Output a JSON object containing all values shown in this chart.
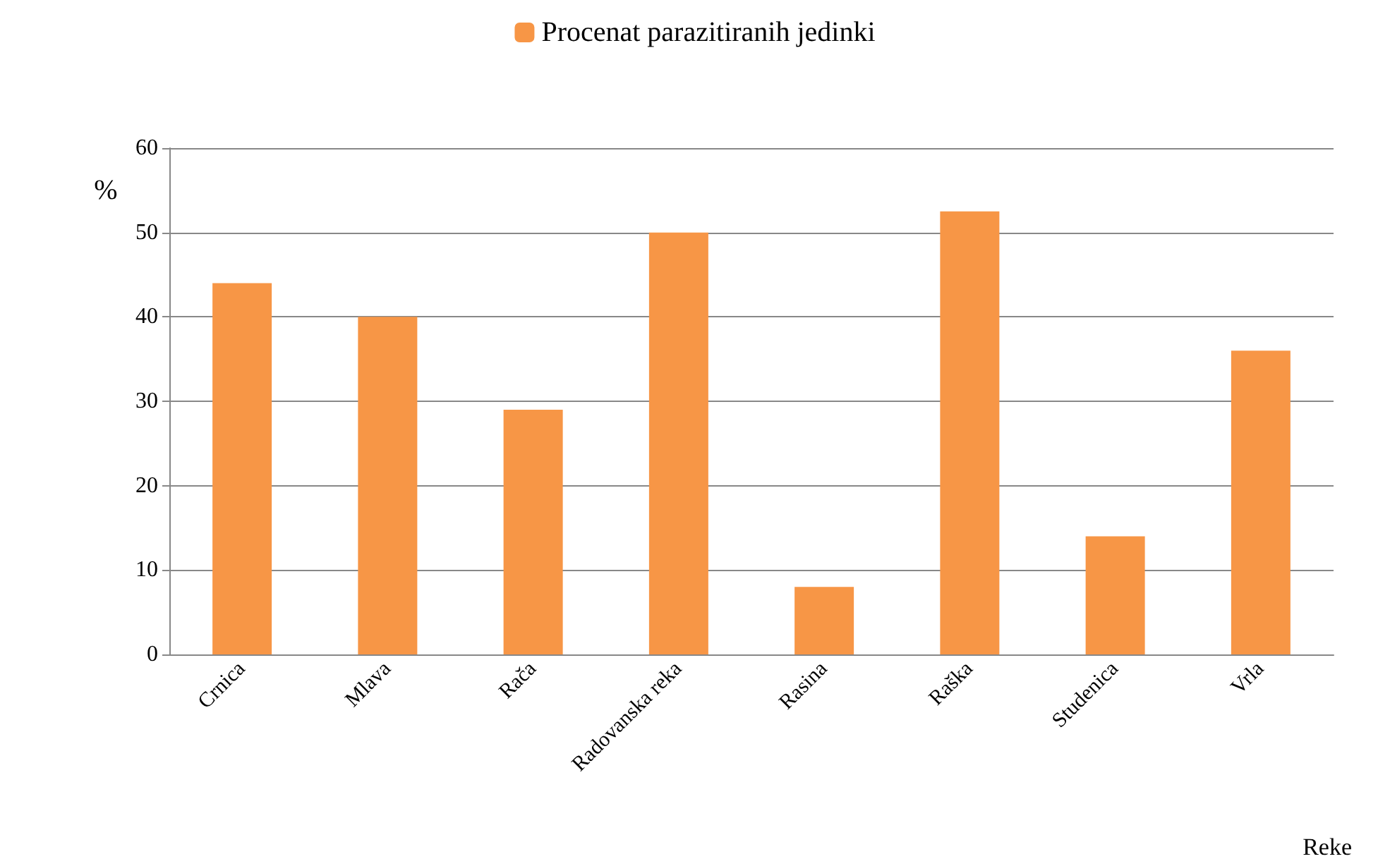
{
  "chart_data": {
    "type": "bar",
    "xlabel": "Reke",
    "ylabel": "%",
    "categories": [
      "Crnica",
      "Mlava",
      "Rača",
      "Radovanska reka",
      "Rasina",
      "Raška",
      "Studenica",
      "Vrla"
    ],
    "series": [
      {
        "name": "Procenat parazitiranih jedinki",
        "color": "#f79646",
        "values": [
          44,
          40,
          29,
          50,
          8,
          52.5,
          14,
          36
        ]
      }
    ],
    "ylim": [
      0,
      60
    ],
    "yticks": [
      0,
      10,
      20,
      30,
      40,
      50,
      60
    ],
    "grid": "y",
    "legend": "top"
  }
}
